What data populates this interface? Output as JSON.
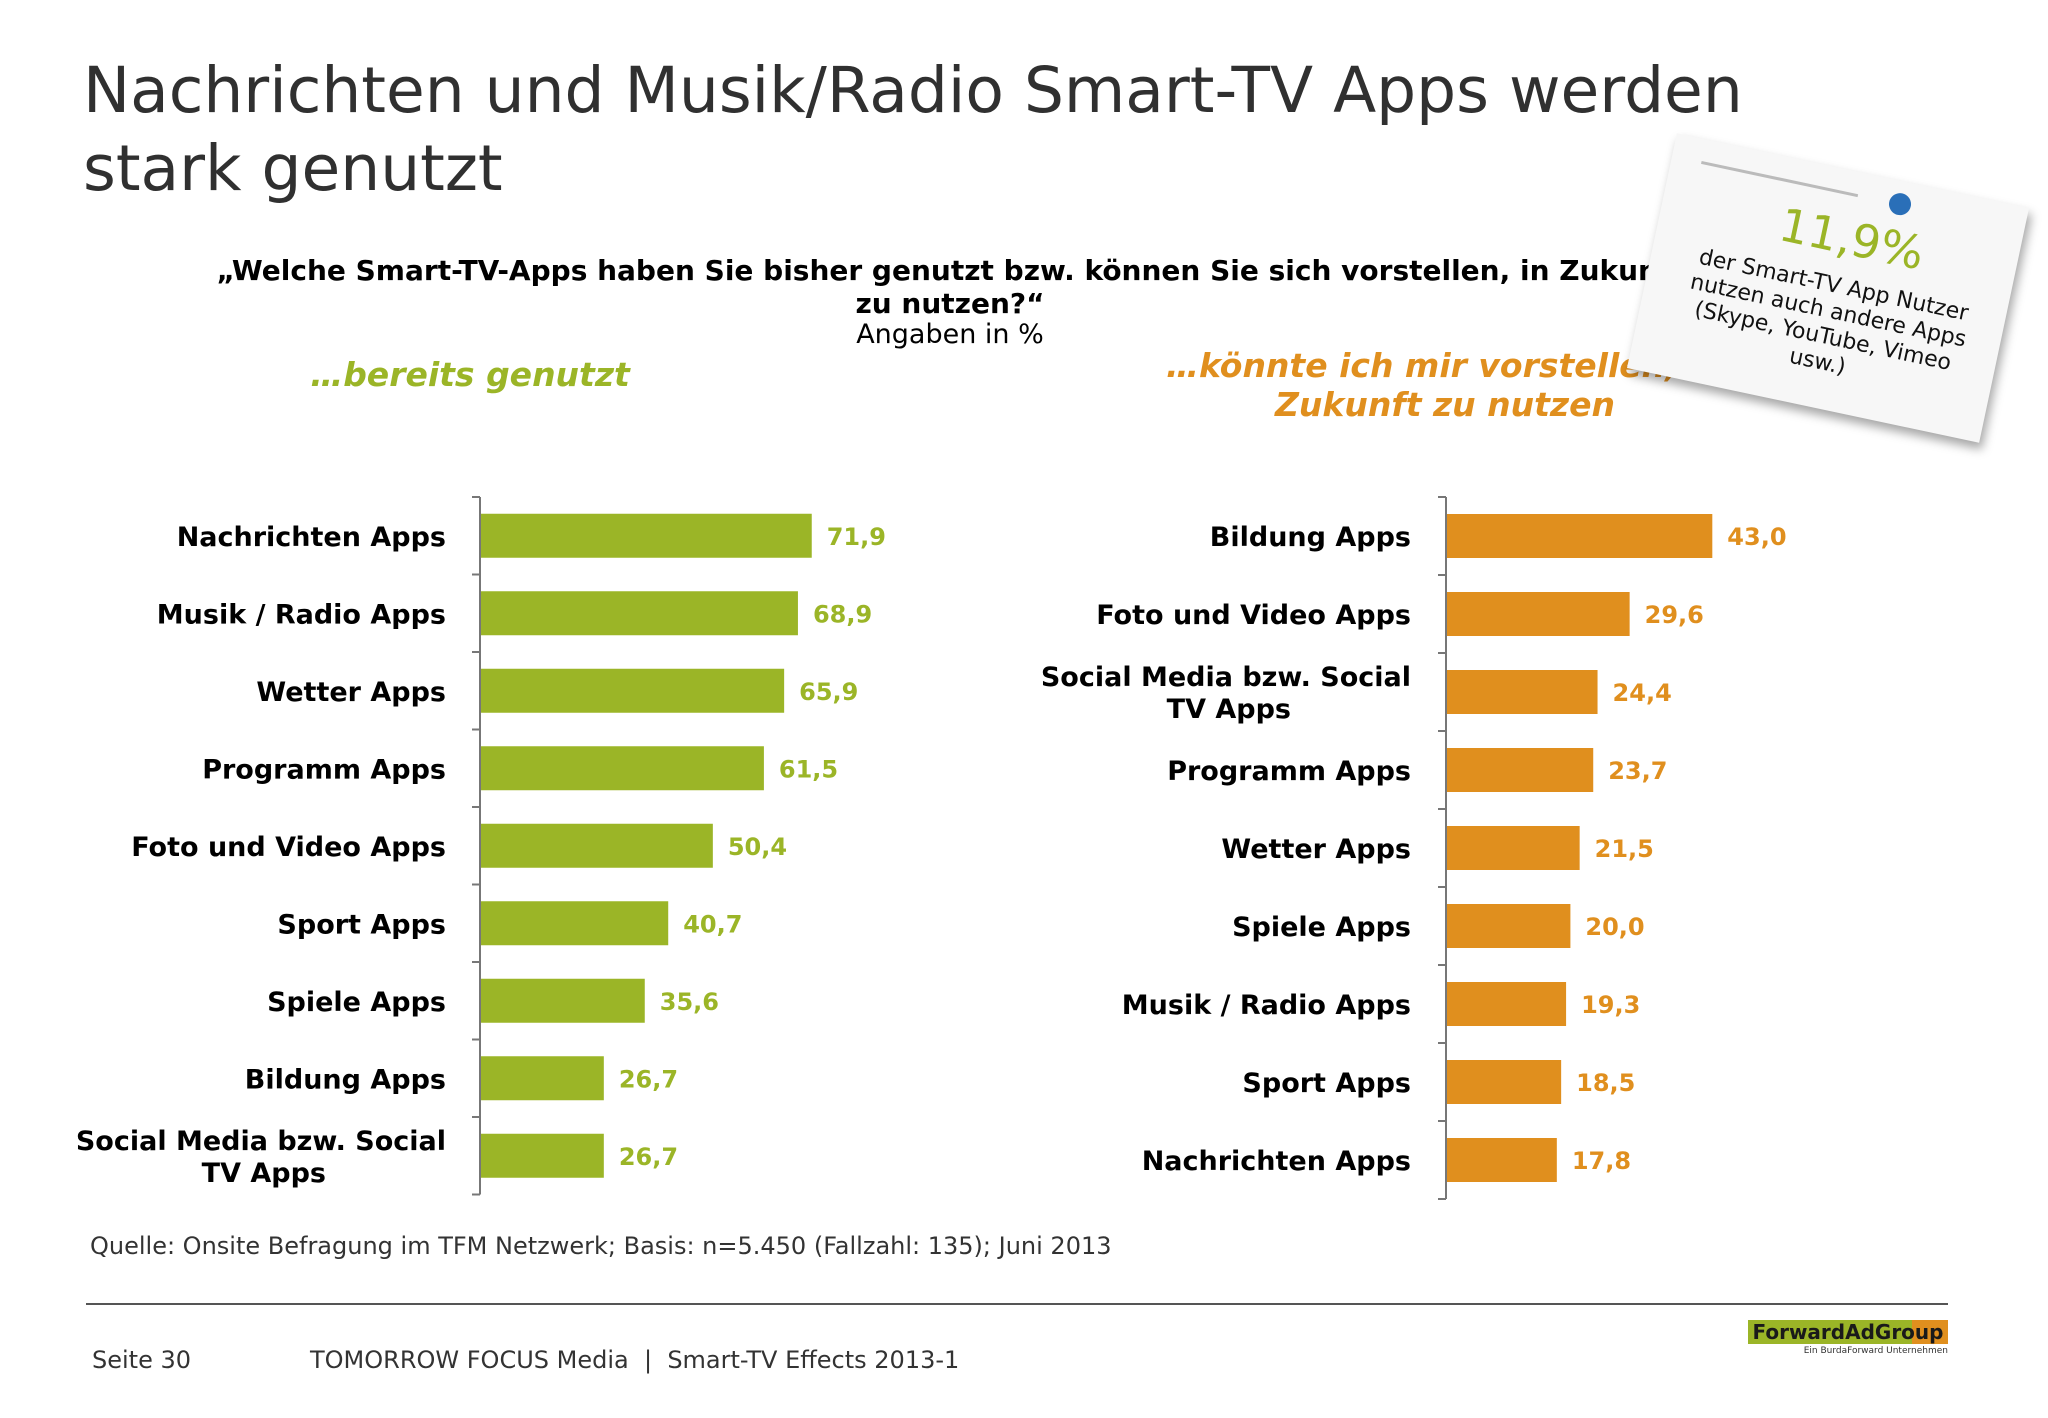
{
  "title": "Nachrichten und Musik/Radio Smart-TV Apps werden stark genutzt",
  "question": "„Welche Smart-TV-Apps haben Sie bisher genutzt bzw. können Sie sich vorstellen, in Zukunft zu nutzen?“",
  "unit": "Angaben in %",
  "note": {
    "percent": "11,9%",
    "text": "der Smart-TV App Nutzer nutzen auch andere Apps (Skype, YouTube, Vimeo usw.)"
  },
  "source": "Quelle: Onsite Befragung im TFM Netzwerk; Basis: n=5.450 (Fallzahl: 135); Juni 2013",
  "footer": {
    "page": "Seite 30",
    "text": "TOMORROW FOCUS Media  |  Smart-TV Effects 2013-1",
    "logo": "ForwardAdGroup",
    "logo_sub": "Ein BurdaForward Unternehmen"
  },
  "chart_data": [
    {
      "type": "bar",
      "orientation": "horizontal",
      "title": "…bereits genutzt",
      "color": "#9bb527",
      "categories": [
        "Nachrichten Apps",
        "Musik / Radio Apps",
        "Wetter Apps",
        "Programm Apps",
        "Foto und Video Apps",
        "Sport Apps",
        "Spiele Apps",
        "Bildung Apps",
        "Social Media bzw. Social TV Apps"
      ],
      "category_lines": [
        [
          "Nachrichten Apps"
        ],
        [
          "Musik / Radio Apps"
        ],
        [
          "Wetter Apps"
        ],
        [
          "Programm Apps"
        ],
        [
          "Foto und Video Apps"
        ],
        [
          "Sport Apps"
        ],
        [
          "Spiele Apps"
        ],
        [
          "Bildung Apps"
        ],
        [
          "Social Media bzw. Social",
          "TV Apps"
        ]
      ],
      "values": [
        71.9,
        68.9,
        65.9,
        61.5,
        50.4,
        40.7,
        35.6,
        26.7,
        26.7
      ],
      "value_labels": [
        "71,9",
        "68,9",
        "65,9",
        "61,5",
        "50,4",
        "40,7",
        "35,6",
        "26,7",
        "26,7"
      ]
    },
    {
      "type": "bar",
      "orientation": "horizontal",
      "title": "…könnte ich mir vorstellen, in Zukunft zu nutzen",
      "color": "#e08f1e",
      "categories": [
        "Bildung Apps",
        "Foto und Video Apps",
        "Social Media bzw. Social TV Apps",
        "Programm Apps",
        "Wetter Apps",
        "Spiele Apps",
        "Musik / Radio Apps",
        "Sport Apps",
        "Nachrichten Apps"
      ],
      "category_lines": [
        [
          "Bildung Apps"
        ],
        [
          "Foto und Video Apps"
        ],
        [
          "Social Media bzw. Social",
          "TV Apps"
        ],
        [
          "Programm Apps"
        ],
        [
          "Wetter Apps"
        ],
        [
          "Spiele Apps"
        ],
        [
          "Musik / Radio Apps"
        ],
        [
          "Sport Apps"
        ],
        [
          "Nachrichten Apps"
        ]
      ],
      "values": [
        43.0,
        29.6,
        24.4,
        23.7,
        21.5,
        20.0,
        19.3,
        18.5,
        17.8
      ],
      "value_labels": [
        "43,0",
        "29,6",
        "24,4",
        "23,7",
        "21,5",
        "20,0",
        "19,3",
        "18,5",
        "17,8"
      ]
    }
  ]
}
